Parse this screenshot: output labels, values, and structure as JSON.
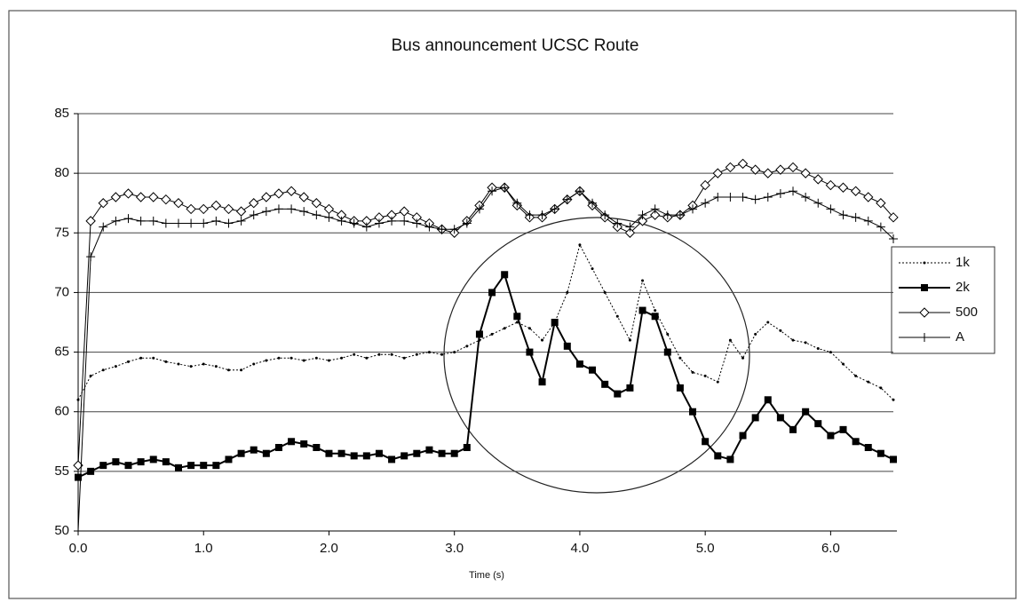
{
  "chart_data": {
    "type": "line",
    "title": "Bus announcement UCSC Route",
    "x_label": "Time (s)",
    "x": [
      0,
      0.1,
      0.2,
      0.3,
      0.4,
      0.5,
      0.6,
      0.7,
      0.8,
      0.9,
      1,
      1.1,
      1.2,
      1.3,
      1.4,
      1.5,
      1.6,
      1.7,
      1.8,
      1.9,
      2,
      2.1,
      2.2,
      2.3,
      2.4,
      2.5,
      2.6,
      2.7,
      2.8,
      2.9,
      3,
      3.1,
      3.2,
      3.3,
      3.4,
      3.5,
      3.6,
      3.7,
      3.8,
      3.9,
      4,
      4.1,
      4.2,
      4.3,
      4.4,
      4.5,
      4.6,
      4.7,
      4.8,
      4.9,
      5,
      5.1,
      5.2,
      5.3,
      5.4,
      5.5,
      5.6,
      5.7,
      5.8,
      5.9,
      6,
      6.1,
      6.2,
      6.3,
      6.4,
      6.5
    ],
    "series": [
      {
        "name": "1k",
        "color": "#000000",
        "marker": "dot",
        "values": [
          61,
          63,
          63.5,
          63.8,
          64.2,
          64.5,
          64.5,
          64.2,
          64,
          63.8,
          64,
          63.8,
          63.5,
          63.5,
          64,
          64.3,
          64.5,
          64.5,
          64.3,
          64.5,
          64.3,
          64.5,
          64.8,
          64.5,
          64.8,
          64.8,
          64.5,
          64.8,
          65,
          64.8,
          65,
          65.5,
          66,
          66.5,
          67,
          67.5,
          67,
          66,
          67.5,
          70,
          74,
          72,
          70,
          68,
          66,
          71,
          68.5,
          66.5,
          64.5,
          63.3,
          63,
          62.5,
          66,
          64.5,
          66.5,
          67.5,
          66.8,
          66,
          65.8,
          65.3,
          65,
          64,
          63,
          62.5,
          62,
          61
        ]
      },
      {
        "name": "2k",
        "color": "#000000",
        "marker": "square",
        "values": [
          54.5,
          55,
          55.5,
          55.8,
          55.5,
          55.8,
          56,
          55.8,
          55.3,
          55.5,
          55.5,
          55.5,
          56,
          56.5,
          56.8,
          56.5,
          57,
          57.5,
          57.3,
          57,
          56.5,
          56.5,
          56.3,
          56.3,
          56.5,
          56,
          56.3,
          56.5,
          56.8,
          56.5,
          56.5,
          57,
          66.5,
          70,
          71.5,
          68,
          65,
          62.5,
          67.5,
          65.5,
          64,
          63.5,
          62.3,
          61.5,
          62,
          68.5,
          68,
          65,
          62,
          60,
          57.5,
          56.3,
          56,
          58,
          59.5,
          61,
          59.5,
          58.5,
          60,
          59,
          58,
          58.5,
          57.5,
          57,
          56.5,
          56
        ]
      },
      {
        "name": "500",
        "color": "#000000",
        "marker": "diamond",
        "values": [
          55.5,
          76,
          77.5,
          78,
          78.3,
          78,
          78,
          77.8,
          77.5,
          77,
          77,
          77.3,
          77,
          76.8,
          77.5,
          78,
          78.3,
          78.5,
          78,
          77.5,
          77,
          76.5,
          76,
          76,
          76.3,
          76.5,
          76.8,
          76.3,
          75.8,
          75.3,
          75,
          76,
          77.3,
          78.8,
          78.8,
          77.3,
          76.3,
          76.3,
          77,
          77.8,
          78.5,
          77.3,
          76.3,
          75.5,
          75,
          76,
          76.5,
          76.3,
          76.5,
          77.3,
          79,
          80,
          80.5,
          80.8,
          80.3,
          80,
          80.3,
          80.5,
          80,
          79.5,
          79,
          78.8,
          78.5,
          78,
          77.5,
          76.3
        ]
      },
      {
        "name": "A",
        "color": "#000000",
        "marker": "plus",
        "values": [
          50,
          73,
          75.5,
          76,
          76.2,
          76,
          76,
          75.8,
          75.8,
          75.8,
          75.8,
          76,
          75.8,
          76,
          76.5,
          76.8,
          77,
          77,
          76.8,
          76.5,
          76.3,
          76,
          75.8,
          75.5,
          75.8,
          76,
          76,
          75.8,
          75.5,
          75.3,
          75.3,
          75.8,
          77,
          78.5,
          78.8,
          77.5,
          76.5,
          76.5,
          77,
          77.8,
          78.5,
          77.5,
          76.5,
          75.8,
          75.5,
          76.5,
          77,
          76.5,
          76.5,
          77,
          77.5,
          78,
          78,
          78,
          77.8,
          78,
          78.3,
          78.5,
          78,
          77.5,
          77,
          76.5,
          76.3,
          76,
          75.5,
          74.5
        ]
      }
    ],
    "xlim": [
      0,
      6.5
    ],
    "xticks": [
      {
        "value": 0,
        "label": "0.0"
      },
      {
        "value": 1,
        "label": "1.0"
      },
      {
        "value": 2,
        "label": "2.0"
      },
      {
        "value": 3,
        "label": "3.0"
      },
      {
        "value": 4,
        "label": "4.0"
      },
      {
        "value": 5,
        "label": "5.0"
      },
      {
        "value": 6,
        "label": "6.0"
      }
    ],
    "ylim": [
      50,
      85
    ],
    "yticks": [
      50,
      55,
      60,
      65,
      70,
      75,
      80,
      85
    ],
    "grid": true,
    "legend": "right"
  }
}
